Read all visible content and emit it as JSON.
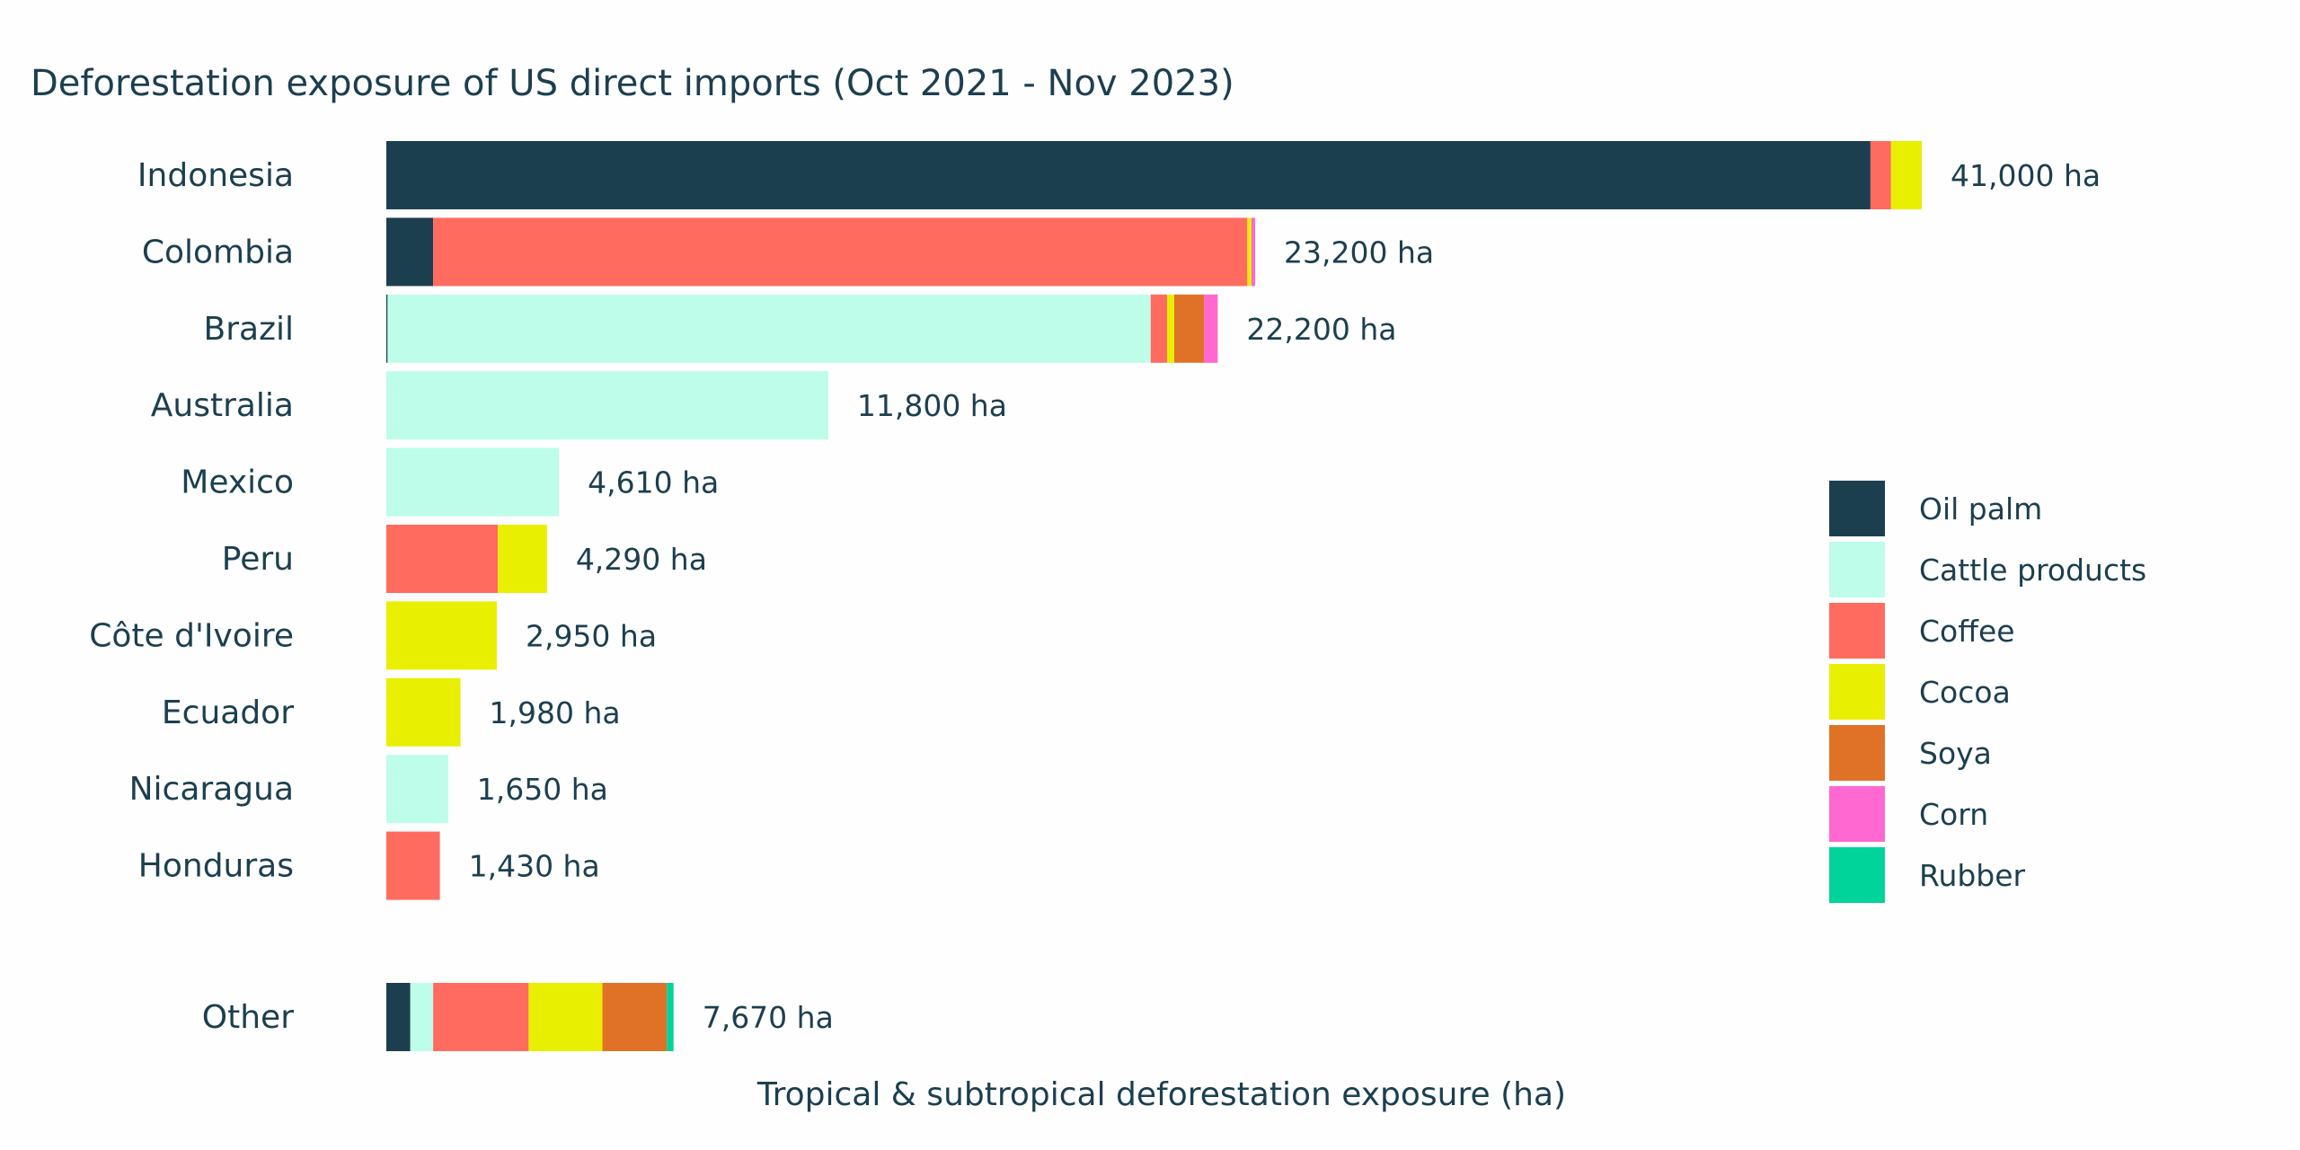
{
  "title": "Deforestation exposure of US direct imports (Oct 2021 - Nov 2023)",
  "chart_data": {
    "type": "bar",
    "orientation": "horizontal",
    "stacked": true,
    "title": "Deforestation exposure of US direct imports (Oct 2021 - Nov 2023)",
    "xlabel": "Tropical & subtropical deforestation exposure (ha)",
    "ylabel": "",
    "xlim": [
      0,
      41000
    ],
    "grid": false,
    "legend_position": "right",
    "categories": [
      "Indonesia",
      "Colombia",
      "Brazil",
      "Australia",
      "Mexico",
      "Peru",
      "Côte d'Ivoire",
      "Ecuador",
      "Nicaragua",
      "Honduras",
      "Other"
    ],
    "totals": [
      41000,
      23200,
      22200,
      11800,
      4610,
      4290,
      2950,
      1980,
      1650,
      1430,
      7670
    ],
    "total_labels": [
      "41,000 ha",
      "23,200 ha",
      "22,200 ha",
      "11,800 ha",
      "4,610 ha",
      "4,290 ha",
      "2,950 ha",
      "1,980 ha",
      "1,650 ha",
      "1,430 ha",
      "7,670 ha"
    ],
    "series": [
      {
        "name": "Oil palm",
        "color": "#1c3f4f",
        "values": [
          39630,
          1250,
          30,
          0,
          0,
          0,
          0,
          0,
          0,
          0,
          640
        ]
      },
      {
        "name": "Cattle products",
        "color": "#bdfde9",
        "values": [
          0,
          0,
          20380,
          11800,
          4610,
          0,
          0,
          0,
          1650,
          0,
          610
        ]
      },
      {
        "name": "Coffee",
        "color": "#ff6b5f",
        "values": [
          550,
          21740,
          440,
          0,
          0,
          2980,
          0,
          0,
          0,
          1430,
          2550
        ]
      },
      {
        "name": "Cocoa",
        "color": "#e8ef00",
        "values": [
          820,
          110,
          190,
          0,
          0,
          1310,
          2950,
          1980,
          0,
          0,
          1970
        ]
      },
      {
        "name": "Soya",
        "color": "#e07228",
        "values": [
          0,
          0,
          800,
          0,
          0,
          0,
          0,
          0,
          0,
          0,
          1720
        ]
      },
      {
        "name": "Corn",
        "color": "#ff68d0",
        "values": [
          0,
          100,
          360,
          0,
          0,
          0,
          0,
          0,
          0,
          0,
          0
        ]
      },
      {
        "name": "Rubber",
        "color": "#00d49b",
        "values": [
          0,
          0,
          0,
          0,
          0,
          0,
          0,
          0,
          0,
          0,
          180
        ]
      }
    ]
  }
}
